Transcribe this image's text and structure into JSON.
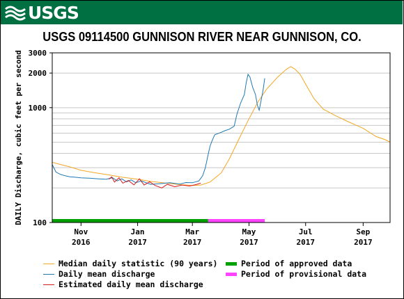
{
  "header": {
    "logo_text": "USGS",
    "brand_color": "#006f41"
  },
  "chart_data": {
    "type": "line",
    "title": "USGS 09114500 GUNNISON RIVER NEAR GUNNISON, CO.",
    "ylabel": "DAILY Discharge, cubic feet per second",
    "xlabel": "",
    "y_scale": "log",
    "ylim": [
      100,
      3000
    ],
    "xlim": [
      "2016-10-01",
      "2017-09-30"
    ],
    "grid": true,
    "legend_position": "bottom",
    "y_ticks": [
      {
        "value": 100,
        "label": "100"
      },
      {
        "value": 1000,
        "label": "1000"
      },
      {
        "value": 2000,
        "label": "2000"
      },
      {
        "value": 3000,
        "label": "3000"
      }
    ],
    "x_ticks": [
      {
        "date": "2016-11-01",
        "month": "Nov",
        "year": "2016"
      },
      {
        "date": "2017-01-01",
        "month": "Jan",
        "year": "2017"
      },
      {
        "date": "2017-03-01",
        "month": "Mar",
        "year": "2017"
      },
      {
        "date": "2017-05-01",
        "month": "May",
        "year": "2017"
      },
      {
        "date": "2017-07-01",
        "month": "Jul",
        "year": "2017"
      },
      {
        "date": "2017-09-01",
        "month": "Sep",
        "year": "2017"
      }
    ],
    "series": [
      {
        "name": "Median daily statistic (90 years)",
        "color": "#f5a623",
        "points": [
          [
            "2016-10-01",
            335
          ],
          [
            "2016-10-10",
            320
          ],
          [
            "2016-10-20",
            305
          ],
          [
            "2016-11-01",
            285
          ],
          [
            "2016-11-15",
            272
          ],
          [
            "2016-12-01",
            260
          ],
          [
            "2016-12-15",
            248
          ],
          [
            "2017-01-01",
            238
          ],
          [
            "2017-01-15",
            228
          ],
          [
            "2017-02-01",
            220
          ],
          [
            "2017-02-15",
            214
          ],
          [
            "2017-03-01",
            210
          ],
          [
            "2017-03-10",
            212
          ],
          [
            "2017-03-20",
            225
          ],
          [
            "2017-04-01",
            270
          ],
          [
            "2017-04-10",
            360
          ],
          [
            "2017-04-20",
            530
          ],
          [
            "2017-05-01",
            800
          ],
          [
            "2017-05-10",
            1100
          ],
          [
            "2017-05-20",
            1450
          ],
          [
            "2017-06-01",
            1850
          ],
          [
            "2017-06-10",
            2150
          ],
          [
            "2017-06-15",
            2280
          ],
          [
            "2017-06-20",
            2150
          ],
          [
            "2017-06-25",
            1950
          ],
          [
            "2017-07-01",
            1600
          ],
          [
            "2017-07-10",
            1200
          ],
          [
            "2017-07-20",
            970
          ],
          [
            "2017-08-01",
            860
          ],
          [
            "2017-08-15",
            760
          ],
          [
            "2017-09-01",
            660
          ],
          [
            "2017-09-15",
            560
          ],
          [
            "2017-09-25",
            525
          ],
          [
            "2017-09-30",
            500
          ]
        ]
      },
      {
        "name": "Daily mean discharge",
        "color": "#1f78b4",
        "points": [
          [
            "2016-10-01",
            320
          ],
          [
            "2016-10-05",
            275
          ],
          [
            "2016-10-10",
            262
          ],
          [
            "2016-10-15",
            255
          ],
          [
            "2016-10-20",
            250
          ],
          [
            "2016-10-25",
            248
          ],
          [
            "2016-11-01",
            245
          ],
          [
            "2016-11-10",
            243
          ],
          [
            "2016-11-20",
            240
          ],
          [
            "2016-11-28",
            238
          ],
          [
            "2016-12-05",
            245
          ],
          [
            "2016-12-10",
            230
          ],
          [
            "2016-12-15",
            240
          ],
          [
            "2016-12-20",
            226
          ],
          [
            "2016-12-25",
            235
          ],
          [
            "2016-12-30",
            222
          ],
          [
            "2017-01-05",
            230
          ],
          [
            "2017-01-15",
            215
          ],
          [
            "2017-01-25",
            218
          ],
          [
            "2017-02-05",
            222
          ],
          [
            "2017-02-15",
            216
          ],
          [
            "2017-02-22",
            223
          ],
          [
            "2017-03-01",
            222
          ],
          [
            "2017-03-08",
            230
          ],
          [
            "2017-03-12",
            255
          ],
          [
            "2017-03-15",
            300
          ],
          [
            "2017-03-18",
            390
          ],
          [
            "2017-03-20",
            460
          ],
          [
            "2017-03-22",
            510
          ],
          [
            "2017-03-25",
            580
          ],
          [
            "2017-04-01",
            610
          ],
          [
            "2017-04-05",
            630
          ],
          [
            "2017-04-10",
            650
          ],
          [
            "2017-04-15",
            690
          ],
          [
            "2017-04-18",
            880
          ],
          [
            "2017-04-22",
            1100
          ],
          [
            "2017-04-26",
            1300
          ],
          [
            "2017-04-28",
            1650
          ],
          [
            "2017-04-30",
            1950
          ],
          [
            "2017-05-02",
            1850
          ],
          [
            "2017-05-05",
            1500
          ],
          [
            "2017-05-08",
            1300
          ],
          [
            "2017-05-10",
            1050
          ],
          [
            "2017-05-12",
            950
          ],
          [
            "2017-05-14",
            1150
          ],
          [
            "2017-05-16",
            1400
          ],
          [
            "2017-05-18",
            1800
          ]
        ]
      },
      {
        "name": "Estimated daily mean discharge",
        "color": "#d7191c",
        "points": [
          [
            "2016-12-01",
            238
          ],
          [
            "2016-12-04",
            250
          ],
          [
            "2016-12-07",
            225
          ],
          [
            "2016-12-12",
            245
          ],
          [
            "2016-12-16",
            220
          ],
          [
            "2016-12-22",
            232
          ],
          [
            "2016-12-28",
            213
          ],
          [
            "2017-01-03",
            240
          ],
          [
            "2017-01-08",
            212
          ],
          [
            "2017-01-14",
            226
          ],
          [
            "2017-01-20",
            210
          ],
          [
            "2017-01-27",
            200
          ],
          [
            "2017-02-02",
            215
          ],
          [
            "2017-02-10",
            205
          ],
          [
            "2017-02-18",
            212
          ],
          [
            "2017-02-26",
            208
          ],
          [
            "2017-03-05",
            214
          ],
          [
            "2017-03-10",
            220
          ]
        ]
      }
    ],
    "periods": [
      {
        "name": "Period of approved data",
        "color": "#00a000",
        "start": "2016-10-01",
        "end": "2017-03-18"
      },
      {
        "name": "Period of provisional data",
        "color": "#ff44ff",
        "start": "2017-03-18",
        "end": "2017-05-18"
      }
    ]
  },
  "legend": {
    "median": "Median daily statistic (90 years)",
    "daily": "Daily mean discharge",
    "estimated": "Estimated daily mean discharge",
    "approved": "Period of approved data",
    "provisional": "Period of provisional data"
  }
}
